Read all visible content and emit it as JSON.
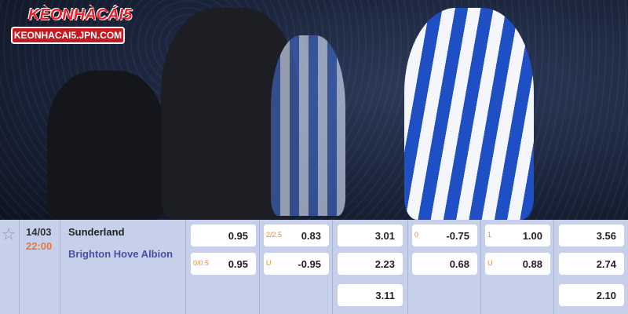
{
  "logo": {
    "brand": "KÈONHÀCÁI5",
    "site": "KEONHACAI5.JPN.COM"
  },
  "match": {
    "date": "14/03",
    "time": "22:00",
    "home": "Sunderland",
    "away": "Brighton Hove Albion"
  },
  "odds": [
    [
      {
        "h": "",
        "v": "0.95"
      },
      {
        "h": "0/0.5",
        "v": "0.95"
      }
    ],
    [
      {
        "h": "2/2.5",
        "v": "0.83"
      },
      {
        "h": "U",
        "v": "-0.95"
      }
    ],
    [
      {
        "h": "",
        "v": "3.01"
      },
      {
        "h": "",
        "v": "2.23"
      },
      {
        "h": "",
        "v": "3.11"
      }
    ],
    [
      {
        "h": "0",
        "v": "-0.75"
      },
      {
        "h": "",
        "v": "0.68"
      }
    ],
    [
      {
        "h": "1",
        "v": "1.00"
      },
      {
        "h": "U",
        "v": "0.88"
      }
    ],
    [
      {
        "h": "",
        "v": "3.56"
      },
      {
        "h": "",
        "v": "2.74"
      },
      {
        "h": "",
        "v": "2.10"
      }
    ]
  ],
  "colors": {
    "table_bg": "#c6d0ea",
    "away_team": "#4650a8",
    "time": "#e9763a",
    "handicap": "#d88a3c"
  }
}
